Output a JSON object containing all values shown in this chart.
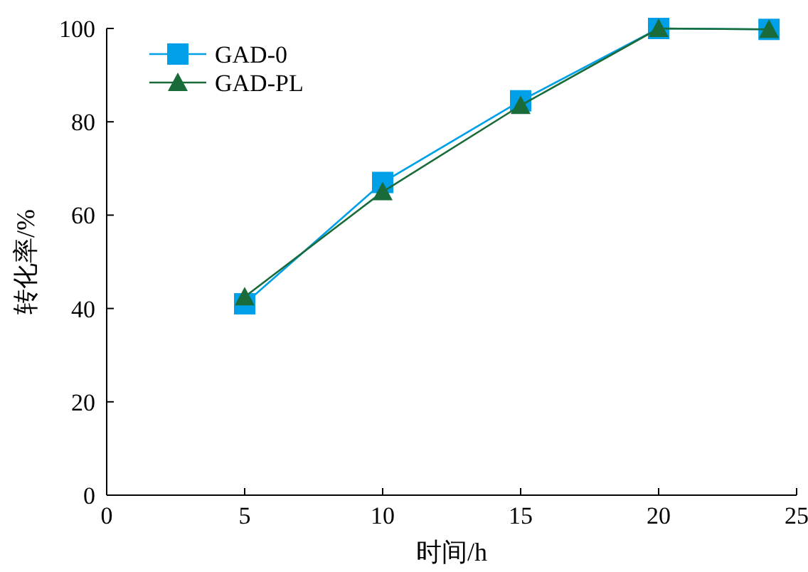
{
  "chart_data": {
    "type": "line",
    "xlabel": "时间/h",
    "ylabel": "转化率/%",
    "x": [
      5,
      10,
      15,
      20,
      24
    ],
    "series": [
      {
        "name": "GAD-0",
        "color": "#00a0e9",
        "marker": "square",
        "values": [
          41,
          67,
          84.5,
          100,
          99.8
        ]
      },
      {
        "name": "GAD-PL",
        "color": "#1a6b3a",
        "marker": "triangle",
        "values": [
          42.5,
          65,
          83.5,
          100,
          99.8
        ]
      }
    ],
    "xlim": [
      0,
      25
    ],
    "xticks": [
      0,
      5,
      10,
      15,
      20,
      25
    ],
    "ylim": [
      0,
      100
    ],
    "yticks": [
      0,
      20,
      40,
      60,
      80,
      100
    ],
    "grid": false,
    "legend": "top left",
    "line_style": "solid"
  }
}
